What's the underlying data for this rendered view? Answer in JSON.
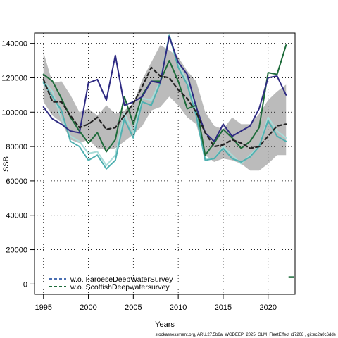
{
  "chart_data": {
    "type": "line",
    "xlabel": "Years",
    "ylabel": "SSB",
    "xlim": [
      1994.0,
      2023.0
    ],
    "ylim": [
      -6000,
      146000
    ],
    "xticks": [
      1995,
      2000,
      2005,
      2010,
      2015,
      2020
    ],
    "xtick_labels": [
      "1995",
      "2000",
      "2005",
      "2010",
      "2015",
      "2020"
    ],
    "yticks": [
      0,
      20000,
      40000,
      60000,
      80000,
      100000,
      120000,
      140000
    ],
    "ytick_labels": [
      "0",
      "20000",
      "40000",
      "60000",
      "80000",
      "100000",
      "120000",
      "140000"
    ],
    "grid": true,
    "grid_style": "dotted",
    "legend_position": "bottom-left",
    "footnote": "stockassessment.org, ARU.27.5b6a_WGDEEP_2025_GLM_FleetEffect r17208 , git:ec2a0c6dde",
    "x": [
      1995,
      1996,
      1997,
      1998,
      1999,
      2000,
      2001,
      2002,
      2003,
      2004,
      2005,
      2006,
      2007,
      2008,
      2009,
      2010,
      2011,
      2012,
      2013,
      2014,
      2015,
      2016,
      2017,
      2018,
      2019,
      2020,
      2021,
      2022
    ],
    "band": {
      "upper": [
        135000,
        117000,
        118000,
        110000,
        100000,
        102000,
        98000,
        104000,
        99000,
        101000,
        105000,
        119000,
        129000,
        139000,
        136000,
        132000,
        124000,
        118000,
        100000,
        92000,
        90000,
        97000,
        93000,
        93000,
        99000,
        107000,
        112000,
        116000
      ],
      "lower": [
        106000,
        98000,
        94000,
        84000,
        82000,
        84000,
        79000,
        78000,
        79000,
        83000,
        87000,
        92000,
        101000,
        103000,
        109000,
        104000,
        97000,
        93000,
        75000,
        71000,
        73000,
        72000,
        70000,
        66000,
        66000,
        70000,
        75000,
        75000
      ],
      "color": "#bbbbbb"
    },
    "series": [
      {
        "style": "dashed",
        "color": "#222222",
        "width": 2.2,
        "values": [
          119000,
          106000,
          106000,
          98000,
          91000,
          93000,
          97000,
          90000,
          91000,
          98000,
          105000,
          115000,
          126000,
          121000,
          120000,
          113000,
          108000,
          100000,
          88000,
          80000,
          81000,
          84000,
          82000,
          79000,
          80000,
          86000,
          92000,
          93000
        ]
      },
      {
        "color": "#2e2a82",
        "width": 2,
        "values": [
          103000,
          96000,
          93000,
          89000,
          88000,
          117000,
          119000,
          107000,
          133000,
          104000,
          106000,
          109000,
          118000,
          117000,
          144000,
          129000,
          122000,
          103000,
          88000,
          83000,
          93000,
          86000,
          89000,
          92000,
          102000,
          120000,
          121000,
          110000
        ]
      },
      {
        "color": "#a8dcd8",
        "width": 2,
        "values": [
          118000,
          112000,
          96000,
          86000,
          83000,
          76000,
          77000,
          69000,
          75000,
          99000,
          88000,
          108000,
          107000,
          118000,
          144000,
          128000,
          118000,
          100000,
          73000,
          73000,
          80000,
          75000,
          70000,
          75000,
          80000,
          97000,
          89000,
          85000
        ]
      },
      {
        "color": "#4fb0b0",
        "width": 2,
        "values": [
          117000,
          109000,
          101000,
          83000,
          80000,
          72000,
          75000,
          67000,
          72000,
          96000,
          85000,
          106000,
          104000,
          117000,
          145000,
          126000,
          116000,
          98000,
          72000,
          73000,
          79000,
          73000,
          71000,
          74000,
          80000,
          95000,
          86000,
          83000
        ]
      },
      {
        "name": "w.o. ScottishDeepwatersurvey",
        "color": "#1d6b3a",
        "width": 2,
        "values": [
          122000,
          118000,
          108000,
          97000,
          89000,
          82000,
          88000,
          77000,
          84000,
          109000,
          93000,
          110000,
          118000,
          118000,
          130000,
          118000,
          102000,
          104000,
          75000,
          82000,
          90000,
          85000,
          79000,
          83000,
          91000,
          123000,
          122000,
          139000
        ]
      }
    ],
    "legend": [
      {
        "label": "w.o. FaroeseDeepWaterSurvey",
        "color": "#4a6fb2",
        "style": "dashed"
      },
      {
        "label": "w.o. ScottishDeepwatersurvey",
        "color": "#1d6b3a",
        "style": "dashed"
      }
    ],
    "edge_marker": {
      "x": 2022.9,
      "y": 4000,
      "color": "#1d6b3a"
    }
  }
}
